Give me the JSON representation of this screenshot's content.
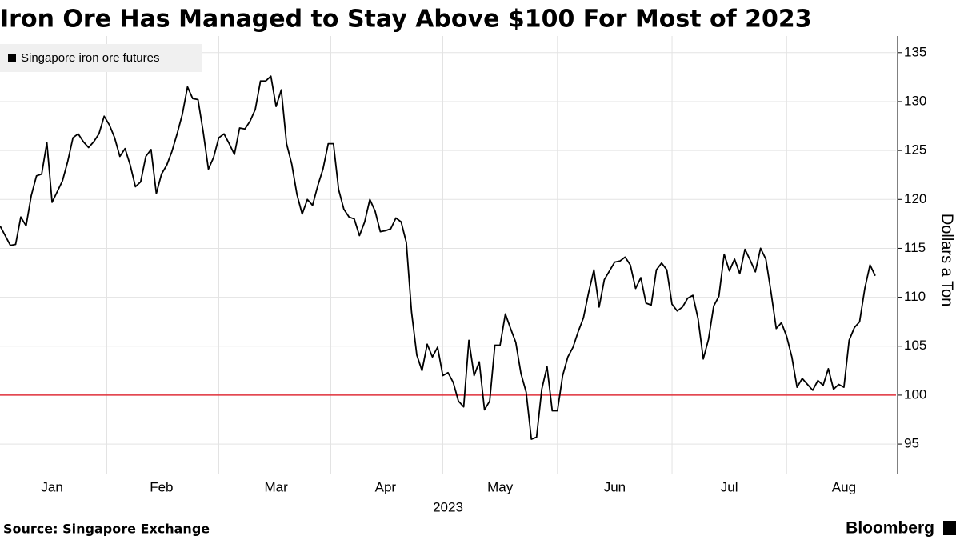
{
  "chart_data": {
    "type": "line",
    "title": "Iron Ore Has Managed to Stay Above $100 For Most of 2023",
    "x_label": "2023",
    "y_label": "Dollars a Ton",
    "source": "Source: Singapore Exchange",
    "brand": "Bloomberg",
    "categories": [
      null,
      null,
      null,
      null,
      null,
      null,
      null,
      null,
      null,
      null,
      "Jan",
      null,
      null,
      null,
      null,
      null,
      null,
      null,
      null,
      null,
      null,
      null,
      null,
      null,
      null,
      null,
      null,
      null,
      null,
      null,
      null,
      "Feb",
      null,
      null,
      null,
      null,
      null,
      null,
      null,
      null,
      null,
      null,
      null,
      null,
      null,
      null,
      null,
      null,
      null,
      null,
      null,
      null,
      null,
      "Mar",
      null,
      null,
      null,
      null,
      null,
      null,
      null,
      null,
      null,
      null,
      null,
      null,
      null,
      null,
      null,
      null,
      null,
      null,
      null,
      null,
      "Apr",
      null,
      null,
      null,
      null,
      null,
      null,
      null,
      null,
      null,
      null,
      null,
      null,
      null,
      null,
      null,
      null,
      null,
      null,
      null,
      null,
      null,
      "May",
      null,
      null,
      null,
      null,
      null,
      null,
      null,
      null,
      null,
      null,
      null,
      null,
      null,
      null,
      null,
      null,
      null,
      null,
      null,
      null,
      null,
      "Jun",
      null,
      null,
      null,
      null,
      null,
      null,
      null,
      null,
      null,
      null,
      null,
      null,
      null,
      null,
      null,
      null,
      null,
      null,
      null,
      null,
      null,
      "Jul",
      null,
      null,
      null,
      null,
      null,
      null,
      null,
      null,
      null,
      null,
      null,
      null,
      null,
      null,
      null,
      null,
      null,
      null,
      null,
      null,
      null,
      "Aug",
      null,
      null,
      null,
      null,
      null,
      null
    ],
    "series": [
      {
        "name": "Singapore iron ore futures",
        "color": "#000000",
        "values": [
          117.3,
          116.3,
          115.3,
          115.4,
          118.2,
          117.3,
          120.4,
          122.4,
          122.6,
          125.8,
          119.7,
          120.8,
          121.9,
          123.9,
          126.3,
          126.7,
          125.9,
          125.3,
          125.9,
          126.7,
          128.5,
          127.6,
          126.3,
          124.4,
          125.2,
          123.5,
          121.3,
          121.8,
          124.4,
          125.1,
          120.6,
          122.6,
          123.5,
          124.9,
          126.7,
          128.7,
          131.5,
          130.3,
          130.2,
          126.9,
          123.1,
          124.3,
          126.3,
          126.7,
          125.7,
          124.6,
          127.3,
          127.2,
          128.0,
          129.2,
          132.1,
          132.1,
          132.6,
          129.5,
          131.2,
          125.7,
          123.6,
          120.5,
          118.5,
          120.0,
          119.4,
          121.4,
          123.1,
          125.7,
          125.7,
          121.0,
          119.0,
          118.2,
          118.0,
          116.3,
          117.7,
          120.0,
          118.8,
          116.7,
          116.8,
          117.0,
          118.1,
          117.7,
          115.6,
          108.5,
          104.1,
          102.5,
          105.2,
          103.9,
          104.9,
          102.0,
          102.3,
          101.3,
          99.4,
          98.8,
          105.6,
          102.0,
          103.4,
          98.5,
          99.4,
          105.1,
          105.1,
          108.3,
          106.8,
          105.4,
          102.2,
          100.3,
          95.5,
          95.7,
          100.6,
          102.9,
          98.4,
          98.4,
          102.0,
          103.9,
          104.9,
          106.5,
          107.9,
          110.5,
          112.8,
          109.0,
          111.8,
          112.7,
          113.6,
          113.7,
          114.1,
          113.3,
          110.9,
          112.0,
          109.4,
          109.2,
          112.8,
          113.5,
          112.8,
          109.3,
          108.6,
          109.0,
          109.9,
          110.2,
          107.8,
          103.7,
          105.7,
          109.1,
          110.1,
          114.4,
          112.7,
          113.9,
          112.4,
          114.9,
          113.8,
          112.6,
          115.0,
          113.9,
          110.5,
          106.8,
          107.4,
          106.0,
          103.9,
          100.8,
          101.7,
          101.1,
          100.5,
          101.5,
          101.0,
          102.7,
          100.6,
          101.1,
          100.8,
          105.6,
          106.9,
          107.5,
          110.9,
          113.3,
          112.2
        ]
      }
    ],
    "reference_line": {
      "value": 100,
      "color": "#e0303a"
    },
    "ylim": [
      91.9,
      136.7
    ],
    "yticks": [
      95,
      100,
      105,
      110,
      115,
      120,
      125,
      130,
      135
    ],
    "y_axis_side": "right",
    "grid": true,
    "legend": "top-left"
  }
}
